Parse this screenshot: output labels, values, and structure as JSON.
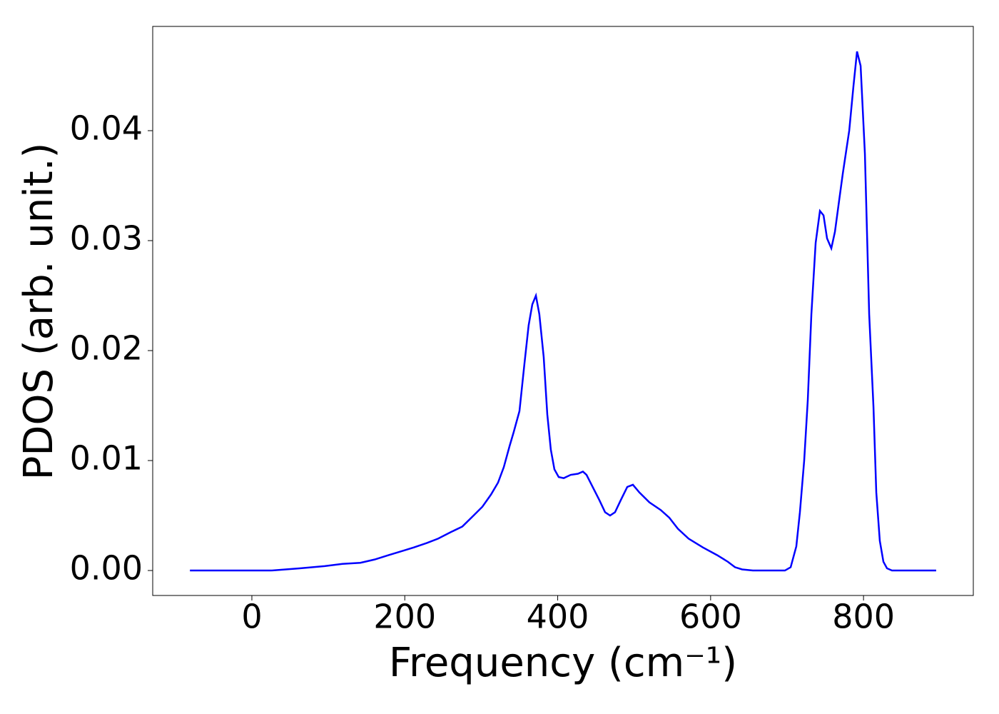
{
  "chart_data": {
    "type": "line",
    "xlabel": "Frequency (cm⁻¹)",
    "ylabel": "PDOS (arb. unit.)",
    "x": [
      -81,
      25,
      62.5,
      95.2,
      118.5,
      141.9,
      160.5,
      179,
      197.9,
      211.9,
      228.7,
      243.6,
      260.4,
      275.3,
      290,
      301.5,
      312.7,
      322,
      329.5,
      337,
      342.5,
      350,
      356.5,
      362,
      366.8,
      371.5,
      376,
      381.7,
      386.4,
      391,
      395.7,
      401.3,
      407.9,
      417,
      426.5,
      433,
      437.7,
      445,
      454.5,
      462,
      468.5,
      475,
      482.5,
      491,
      498.4,
      506.8,
      519.9,
      534.8,
      546,
      557.2,
      571.2,
      589.9,
      608.5,
      622.5,
      631.9,
      641.2,
      655.2,
      697.2,
      704.7,
      712.1,
      716.8,
      722.4,
      727.1,
      731.8,
      737.4,
      743,
      747.7,
      752.3,
      757.9,
      762.6,
      768.2,
      772.9,
      781.3,
      786.9,
      791.5,
      796.2,
      801.8,
      807.4,
      813,
      816.7,
      821.3,
      826,
      830.7,
      837.2,
      895
    ],
    "series": [
      {
        "color": "#0000ff",
        "values": [
          0,
          0,
          0.0002,
          0.0004,
          0.0006,
          0.0007,
          0.001,
          0.0014,
          0.0018,
          0.0021,
          0.0025,
          0.0029,
          0.0035,
          0.004,
          0.005,
          0.0058,
          0.0069,
          0.008,
          0.0094,
          0.0113,
          0.0126,
          0.0145,
          0.0188,
          0.0223,
          0.0242,
          0.025,
          0.0233,
          0.0194,
          0.0142,
          0.011,
          0.0092,
          0.0085,
          0.0084,
          0.0087,
          0.0088,
          0.009,
          0.0087,
          0.0077,
          0.0064,
          0.0053,
          0.005,
          0.0053,
          0.0064,
          0.0076,
          0.0078,
          0.0071,
          0.0062,
          0.0055,
          0.0048,
          0.0038,
          0.0029,
          0.0021,
          0.0014,
          0.0008,
          0.0003,
          0.0001,
          0,
          0,
          0.0003,
          0.0022,
          0.0053,
          0.01,
          0.0155,
          0.0233,
          0.0298,
          0.0327,
          0.0323,
          0.0302,
          0.0293,
          0.0308,
          0.0337,
          0.0361,
          0.04,
          0.0441,
          0.0472,
          0.0459,
          0.0379,
          0.0233,
          0.0149,
          0.0071,
          0.0027,
          0.0008,
          0.0002,
          0,
          0
        ]
      }
    ],
    "xlim": [
      -129.7,
      943.6
    ],
    "ylim": [
      -0.00227,
      0.04948
    ],
    "xticks": [
      0,
      200,
      400,
      600,
      800
    ],
    "yticks": [
      {
        "value": 0,
        "label": "0.00"
      },
      0.01,
      0.02,
      0.03,
      0.04
    ]
  }
}
